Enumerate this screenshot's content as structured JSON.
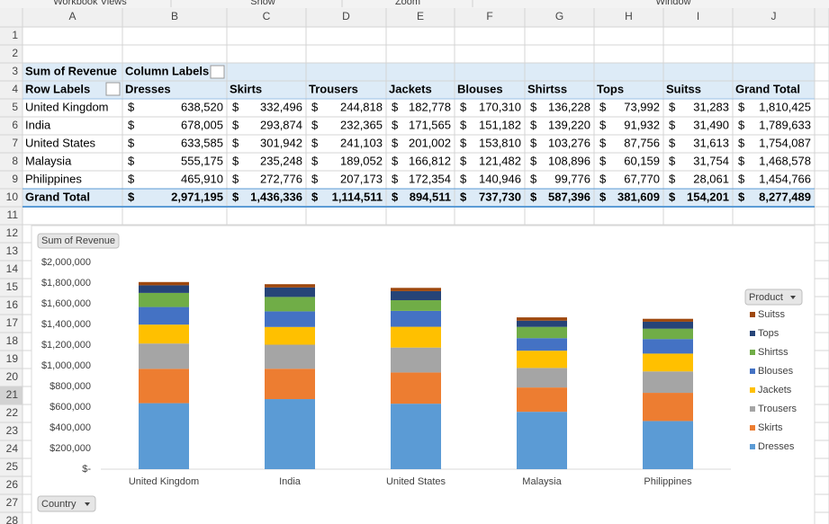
{
  "ribbon_groups": [
    "Workbook Views",
    "Show",
    "Zoom",
    "Window"
  ],
  "columns": [
    "A",
    "B",
    "C",
    "D",
    "E",
    "F",
    "G",
    "H",
    "I",
    "J"
  ],
  "rows": [
    "1",
    "2",
    "3",
    "4",
    "5",
    "6",
    "7",
    "8",
    "9",
    "10",
    "11",
    "12",
    "13",
    "14",
    "15",
    "16",
    "17",
    "18",
    "19",
    "20",
    "21",
    "22",
    "23",
    "24",
    "25",
    "26",
    "27",
    "28"
  ],
  "pivot": {
    "corner": "Sum of Revenue",
    "column_labels": "Column Labels",
    "row_labels": "Row Labels",
    "headers": [
      "Dresses",
      "Skirts",
      "Trousers",
      "Jackets",
      "Blouses",
      "Shirtss",
      "Tops",
      "Suitss",
      "Grand Total"
    ],
    "body": [
      {
        "label": "United Kingdom",
        "cells": [
          [
            "$",
            "638,520"
          ],
          [
            "$",
            "332,496"
          ],
          [
            "$",
            "244,818"
          ],
          [
            "$",
            "182,778"
          ],
          [
            "$",
            "170,310"
          ],
          [
            "$",
            "136,228"
          ],
          [
            "$",
            "73,992"
          ],
          [
            "$",
            "31,283"
          ],
          [
            "$",
            "1,810,425"
          ]
        ]
      },
      {
        "label": "India",
        "cells": [
          [
            "$",
            "678,005"
          ],
          [
            "$",
            "293,874"
          ],
          [
            "$",
            "232,365"
          ],
          [
            "$",
            "171,565"
          ],
          [
            "$",
            "151,182"
          ],
          [
            "$",
            "139,220"
          ],
          [
            "$",
            "91,932"
          ],
          [
            "$",
            "31,490"
          ],
          [
            "$",
            "1,789,633"
          ]
        ]
      },
      {
        "label": "United States",
        "cells": [
          [
            "$",
            "633,585"
          ],
          [
            "$",
            "301,942"
          ],
          [
            "$",
            "241,103"
          ],
          [
            "$",
            "201,002"
          ],
          [
            "$",
            "153,810"
          ],
          [
            "$",
            "103,276"
          ],
          [
            "$",
            "87,756"
          ],
          [
            "$",
            "31,613"
          ],
          [
            "$",
            "1,754,087"
          ]
        ]
      },
      {
        "label": "Malaysia",
        "cells": [
          [
            "$",
            "555,175"
          ],
          [
            "$",
            "235,248"
          ],
          [
            "$",
            "189,052"
          ],
          [
            "$",
            "166,812"
          ],
          [
            "$",
            "121,482"
          ],
          [
            "$",
            "108,896"
          ],
          [
            "$",
            "60,159"
          ],
          [
            "$",
            "31,754"
          ],
          [
            "$",
            "1,468,578"
          ]
        ]
      },
      {
        "label": "Philippines",
        "cells": [
          [
            "$",
            "465,910"
          ],
          [
            "$",
            "272,776"
          ],
          [
            "$",
            "207,173"
          ],
          [
            "$",
            "172,354"
          ],
          [
            "$",
            "140,946"
          ],
          [
            "$",
            "99,776"
          ],
          [
            "$",
            "67,770"
          ],
          [
            "$",
            "28,061"
          ],
          [
            "$",
            "1,454,766"
          ]
        ]
      }
    ],
    "total": {
      "label": "Grand Total",
      "cells": [
        [
          "$",
          "2,971,195"
        ],
        [
          "$",
          "1,436,336"
        ],
        [
          "$",
          "1,114,511"
        ],
        [
          "$",
          "894,511"
        ],
        [
          "$",
          "737,730"
        ],
        [
          "$",
          "587,396"
        ],
        [
          "$",
          "381,609"
        ],
        [
          "$",
          "154,201"
        ],
        [
          "$",
          "8,277,489"
        ]
      ]
    }
  },
  "chart_data": {
    "type": "stacked_bar",
    "value_field": "Sum of Revenue",
    "axis_field": "Country",
    "legend_title": "Product",
    "legend": "right",
    "categories": [
      "United Kingdom",
      "India",
      "United States",
      "Malaysia",
      "Philippines"
    ],
    "series": [
      {
        "name": "Dresses",
        "color": "#5b9bd5",
        "values": [
          638520,
          678005,
          633585,
          555175,
          465910
        ]
      },
      {
        "name": "Skirts",
        "color": "#ed7d31",
        "values": [
          332496,
          293874,
          301942,
          235248,
          272776
        ]
      },
      {
        "name": "Trousers",
        "color": "#a5a5a5",
        "values": [
          244818,
          232365,
          241103,
          189052,
          207173
        ]
      },
      {
        "name": "Jackets",
        "color": "#ffc000",
        "values": [
          182778,
          171565,
          201002,
          166812,
          172354
        ]
      },
      {
        "name": "Blouses",
        "color": "#4472c4",
        "values": [
          170310,
          151182,
          153810,
          121482,
          140946
        ]
      },
      {
        "name": "Shirtss",
        "color": "#70ad47",
        "values": [
          136228,
          139220,
          103276,
          108896,
          99776
        ]
      },
      {
        "name": "Tops",
        "color": "#264478",
        "values": [
          73992,
          91932,
          87756,
          60159,
          67770
        ]
      },
      {
        "name": "Suitss",
        "color": "#9e480e",
        "values": [
          31283,
          31490,
          31613,
          31754,
          28061
        ]
      }
    ],
    "ylim": [
      0,
      2000000
    ],
    "yticks": [
      {
        "value": 0,
        "label": "$-"
      },
      {
        "value": 200000,
        "label": "$200,000"
      },
      {
        "value": 400000,
        "label": "$400,000"
      },
      {
        "value": 600000,
        "label": "$600,000"
      },
      {
        "value": 800000,
        "label": "$800,000"
      },
      {
        "value": 1000000,
        "label": "$1,000,000"
      },
      {
        "value": 1200000,
        "label": "$1,200,000"
      },
      {
        "value": 1400000,
        "label": "$1,400,000"
      },
      {
        "value": 1600000,
        "label": "$1,600,000"
      },
      {
        "value": 1800000,
        "label": "$1,800,000"
      },
      {
        "value": 2000000,
        "label": "$2,000,000"
      }
    ]
  }
}
